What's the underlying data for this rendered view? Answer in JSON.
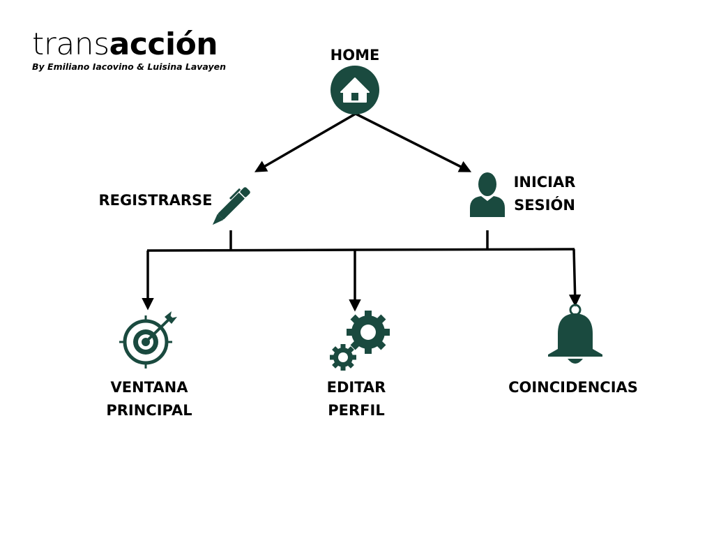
{
  "logo": {
    "word_light": "trans",
    "word_bold": "acción",
    "byline": "By Emiliano Iacovino & Luisina Lavayen"
  },
  "nodes": {
    "home": {
      "label": "HOME",
      "icon": "house-icon"
    },
    "registrarse": {
      "label": "REGISTRARSE",
      "icon": "pen-icon"
    },
    "iniciar_sesion": {
      "label_line1": "INICIAR",
      "label_line2": "SESIÓN",
      "icon": "user-icon"
    },
    "ventana_principal": {
      "label_line1": "VENTANA",
      "label_line2": "PRINCIPAL",
      "icon": "target-icon"
    },
    "editar_perfil": {
      "label_line1": "EDITAR",
      "label_line2": "PERFIL",
      "icon": "gears-icon"
    },
    "coincidencias": {
      "label": "COINCIDENCIAS",
      "icon": "bell-icon"
    }
  },
  "colors": {
    "icon": "#1a4a3f",
    "line": "#000000"
  }
}
